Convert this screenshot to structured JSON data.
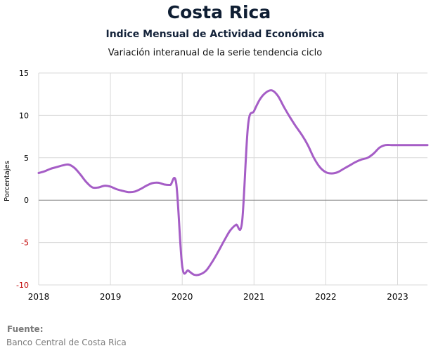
{
  "header": {
    "title": "Costa Rica",
    "subtitle": "Indice Mensual de  Actividad Económica",
    "subtitle2": "Variación interanual de la serie tendencia ciclo"
  },
  "footer": {
    "source_label": "Fuente:",
    "source_text": "Banco Central de Costa Rica"
  },
  "colors": {
    "line": "#a55dc6",
    "grid": "#d9d9d9",
    "zero_line": "#808080",
    "negative_tick": "#c00000"
  },
  "chart_data": {
    "type": "line",
    "title": "Costa Rica",
    "subtitle": "Indice Mensual de  Actividad Económica",
    "ylabel": "Porcentajes",
    "ylim": [
      -10,
      15
    ],
    "yticks": [
      15,
      10,
      5,
      0,
      -5,
      -10
    ],
    "xticks": [
      "2018",
      "2019",
      "2020",
      "2021",
      "2022",
      "2023"
    ],
    "xlim": [
      "2018-01",
      "2023-06"
    ],
    "grid": true,
    "series": [
      {
        "x": [
          "2018-01",
          "2018-02",
          "2018-03",
          "2018-04",
          "2018-05",
          "2018-06",
          "2018-07",
          "2018-08",
          "2018-09",
          "2018-10",
          "2018-11",
          "2018-12",
          "2019-01",
          "2019-02",
          "2019-03",
          "2019-04",
          "2019-05",
          "2019-06",
          "2019-07",
          "2019-08",
          "2019-09",
          "2019-10",
          "2019-11",
          "2019-12",
          "2020-01",
          "2020-02",
          "2020-03",
          "2020-04",
          "2020-05",
          "2020-06",
          "2020-07",
          "2020-08",
          "2020-09",
          "2020-10",
          "2020-11",
          "2020-12",
          "2021-01",
          "2021-02",
          "2021-03",
          "2021-04",
          "2021-05",
          "2021-06",
          "2021-07",
          "2021-08",
          "2021-09",
          "2021-10",
          "2021-11",
          "2021-12",
          "2022-01",
          "2022-02",
          "2022-03",
          "2022-04",
          "2022-05",
          "2022-06",
          "2022-07",
          "2022-08",
          "2022-09",
          "2022-10",
          "2022-11",
          "2022-12",
          "2023-01",
          "2023-02",
          "2023-03",
          "2023-04",
          "2023-05",
          "2023-06"
        ],
        "values": [
          3.2,
          3.4,
          3.7,
          3.9,
          4.1,
          4.2,
          3.8,
          3.0,
          2.1,
          1.5,
          1.5,
          1.7,
          1.6,
          1.3,
          1.1,
          0.95,
          1.0,
          1.3,
          1.7,
          2.0,
          2.05,
          1.85,
          1.8,
          1.95,
          -7.8,
          -8.3,
          -8.8,
          -8.75,
          -8.3,
          -7.3,
          -6.1,
          -4.8,
          -3.6,
          -2.9,
          -2.6,
          8.8,
          10.5,
          11.9,
          12.7,
          12.95,
          12.3,
          11.0,
          9.8,
          8.7,
          7.7,
          6.5,
          5.0,
          3.9,
          3.3,
          3.15,
          3.3,
          3.7,
          4.1,
          4.5,
          4.8,
          5.0,
          5.5,
          6.2,
          6.5,
          6.5,
          6.5,
          6.5,
          6.5,
          6.5,
          6.5,
          6.5
        ]
      }
    ]
  }
}
